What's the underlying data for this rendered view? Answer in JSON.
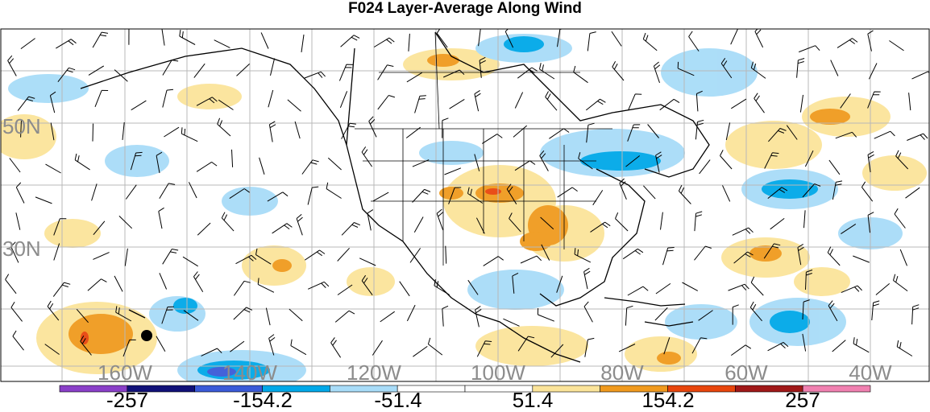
{
  "title": "F024 Layer-Average Along Wind",
  "map": {
    "lat_labels": [
      "50N",
      "30N"
    ],
    "lon_labels": [
      "160W",
      "140W",
      "120W",
      "100W",
      "80W",
      "60W",
      "40W"
    ],
    "marker": "black-dot"
  },
  "colorbar": {
    "colors": [
      "#8a3fc8",
      "#101078",
      "#3a5ad8",
      "#00a8e8",
      "#a8dcf8",
      "#ffffff",
      "#ffffff",
      "#fbe49a",
      "#f09a1e",
      "#e8450c",
      "#a01818",
      "#f080b0"
    ],
    "labels": [
      "-257",
      "-154.2",
      "-51.4",
      "51.4",
      "154.2",
      "257"
    ]
  }
}
